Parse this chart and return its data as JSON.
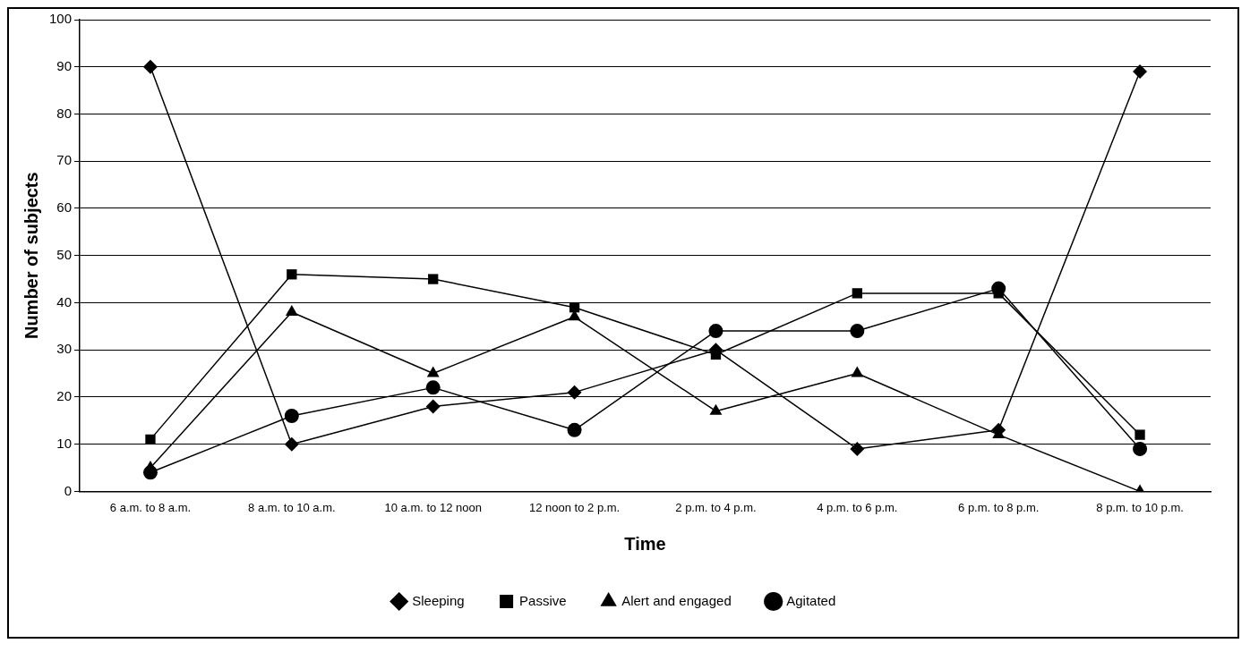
{
  "chart_data": {
    "type": "line",
    "xlabel": "Time",
    "ylabel": "Number of subjects",
    "categories": [
      "6 a.m. to 8 a.m.",
      "8 a.m. to 10 a.m.",
      "10 a.m. to 12 noon",
      "12 noon to 2 p.m.",
      "2 p.m. to 4 p.m.",
      "4 p.m. to 6 p.m.",
      "6 p.m. to 8 p.m.",
      "8 p.m. to 10 p.m."
    ],
    "series": [
      {
        "name": "Sleeping",
        "color": "#000000",
        "marker": "diamond",
        "values": [
          90,
          10,
          18,
          21,
          30,
          9,
          13,
          89
        ]
      },
      {
        "name": "Passive",
        "color": "#000000",
        "marker": "square",
        "values": [
          11,
          46,
          45,
          39,
          29,
          42,
          42,
          12
        ]
      },
      {
        "name": "Alert and engaged",
        "color": "#000000",
        "marker": "triangle",
        "values": [
          5,
          38,
          25,
          37,
          17,
          25,
          12,
          0
        ]
      },
      {
        "name": "Agitated",
        "color": "#000000",
        "marker": "circle",
        "values": [
          4,
          16,
          22,
          13,
          34,
          34,
          43,
          9
        ]
      }
    ],
    "ylim": [
      0,
      100
    ],
    "yticks": [
      0,
      10,
      20,
      30,
      40,
      50,
      60,
      70,
      80,
      90,
      100
    ],
    "grid": "y",
    "legend": "bottom",
    "line_style": "solid"
  }
}
